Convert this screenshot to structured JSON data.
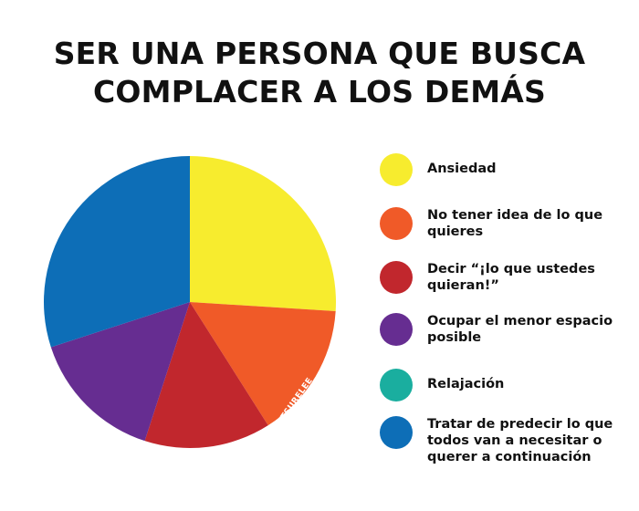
{
  "title_lines": [
    "SER UNA PERSONA QUE BUSCA",
    "COMPLACER A LOS DEMÁS"
  ],
  "watermark": "@MATTSURELEE",
  "chart_data": {
    "type": "pie",
    "title": "SER UNA PERSONA QUE BUSCA COMPLACER A LOS DEMÁS",
    "start_angle_deg": 0,
    "direction": "clockwise",
    "legend_position": "right",
    "slices": [
      {
        "label": "Ansiedad",
        "value": 26,
        "color": "#F7EC2E"
      },
      {
        "label": "No tener idea de lo que quieres",
        "value": 15,
        "color": "#F05A28"
      },
      {
        "label": "Decir “¡lo que ustedes quieran!”",
        "value": 14,
        "color": "#C1272D"
      },
      {
        "label": "Ocupar el menor espacio posible",
        "value": 15,
        "color": "#662D91"
      },
      {
        "label": "Relajación",
        "value": 0,
        "color": "#1AAE9F"
      },
      {
        "label": "Tratar de predecir lo que todos van a necesitar o querer a continuación",
        "value": 30,
        "color": "#0D6EB7"
      }
    ]
  }
}
